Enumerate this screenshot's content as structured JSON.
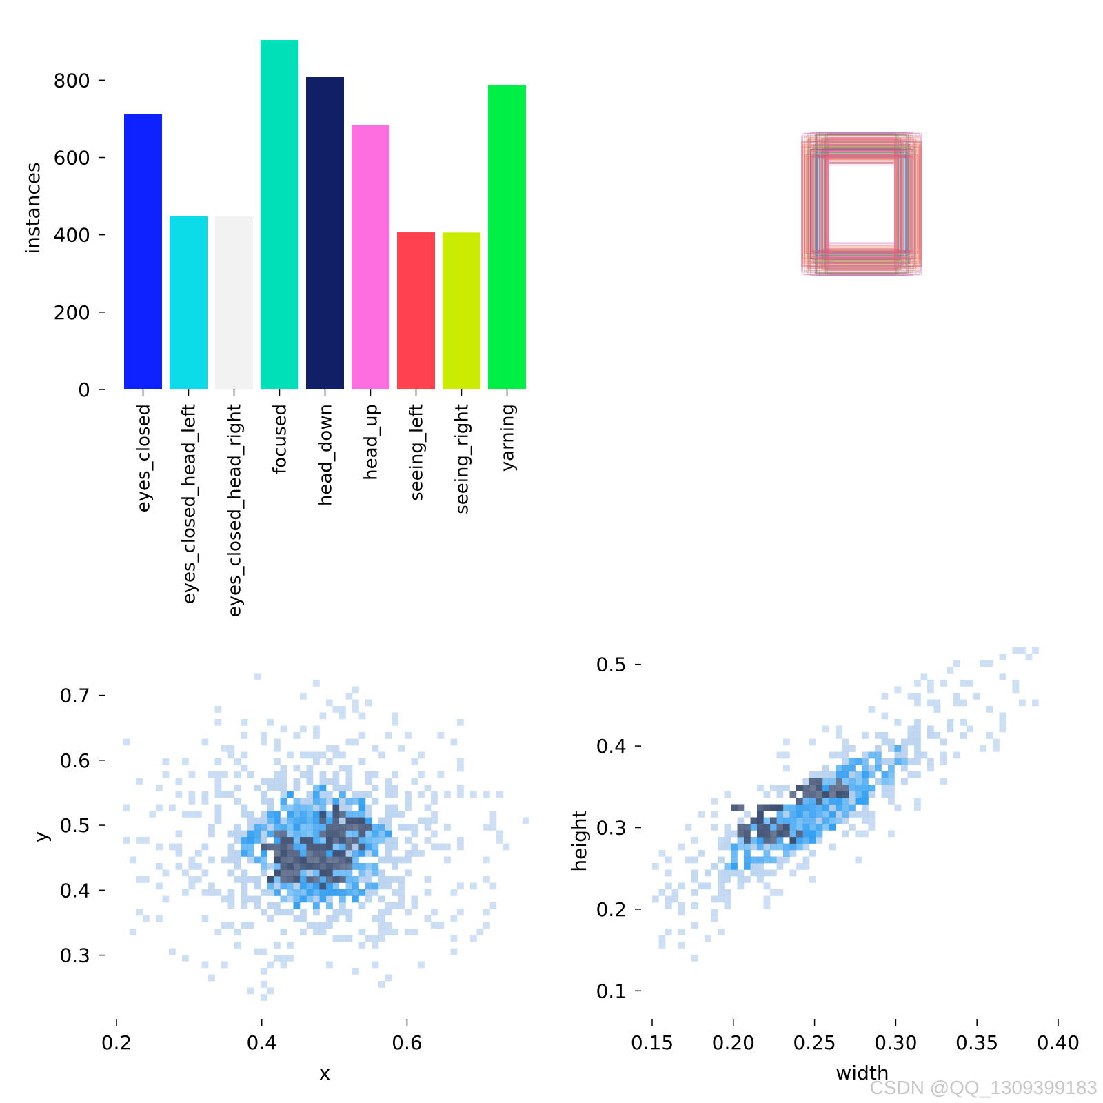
{
  "watermark": "CSDN @QQ_1309399183",
  "colors": {
    "hist_light": "#a9c8ec",
    "hist_mid": "#2b9bf0",
    "hist_dark": "#3d4f72",
    "axis": "#000000"
  },
  "chart_data": [
    {
      "type": "bar",
      "ylabel": "instances",
      "xlabel": "",
      "ylim": [
        0,
        910
      ],
      "yticks": [
        0,
        200,
        400,
        600,
        800
      ],
      "ytick_labels": [
        "0",
        "200",
        "400",
        "600",
        "800"
      ],
      "categories": [
        "eyes_closed",
        "eyes_closed_head_left",
        "eyes_closed_head_right",
        "focused",
        "head_down",
        "head_up",
        "seeing_left",
        "seeing_right",
        "yarning"
      ],
      "values": [
        712,
        448,
        448,
        904,
        808,
        684,
        408,
        406,
        788
      ],
      "bar_colors": [
        "#0d22ff",
        "#0cdbe8",
        "#f2f2f2",
        "#00e0b8",
        "#111f66",
        "#ff6ee0",
        "#ff4150",
        "#cbec00",
        "#00ef46"
      ]
    },
    {
      "type": "boxes",
      "title": "",
      "description_colors": [
        "#ff6b6b",
        "#ff8c42",
        "#e25d5d",
        "#f06090",
        "#6fbf5f",
        "#3a4fa0",
        "#b060c0",
        "#5a8fd0"
      ]
    },
    {
      "type": "heatmap",
      "xlabel": "x",
      "ylabel": "y",
      "xlim": [
        0.2,
        0.76
      ],
      "ylim": [
        0.22,
        0.76
      ],
      "xticks": [
        0.2,
        0.4,
        0.6
      ],
      "xtick_labels": [
        "0.2",
        "0.4",
        "0.6"
      ],
      "yticks": [
        0.3,
        0.4,
        0.5,
        0.6,
        0.7
      ],
      "ytick_labels": [
        "0.3",
        "0.4",
        "0.5",
        "0.6",
        "0.7"
      ],
      "center": [
        0.47,
        0.46
      ],
      "spread": [
        0.085,
        0.075
      ],
      "hot_spots": [
        [
          0.43,
          0.445
        ],
        [
          0.51,
          0.49
        ],
        [
          0.48,
          0.44
        ]
      ]
    },
    {
      "type": "heatmap",
      "xlabel": "width",
      "ylabel": "height",
      "xlim": [
        0.15,
        0.4
      ],
      "ylim": [
        0.08,
        0.52
      ],
      "xticks": [
        0.15,
        0.2,
        0.25,
        0.3,
        0.35,
        0.4
      ],
      "xtick_labels": [
        "0.15",
        "0.20",
        "0.25",
        "0.30",
        "0.35",
        "0.40"
      ],
      "yticks": [
        0.1,
        0.2,
        0.3,
        0.4,
        0.5
      ],
      "ytick_labels": [
        "0.1",
        "0.2",
        "0.3",
        "0.4",
        "0.5"
      ],
      "center": [
        0.25,
        0.32
      ],
      "slope": 1.2,
      "spread": [
        0.045,
        0.03
      ],
      "hot_spots": [
        [
          0.21,
          0.315
        ],
        [
          0.25,
          0.34
        ],
        [
          0.22,
          0.29
        ]
      ]
    }
  ]
}
